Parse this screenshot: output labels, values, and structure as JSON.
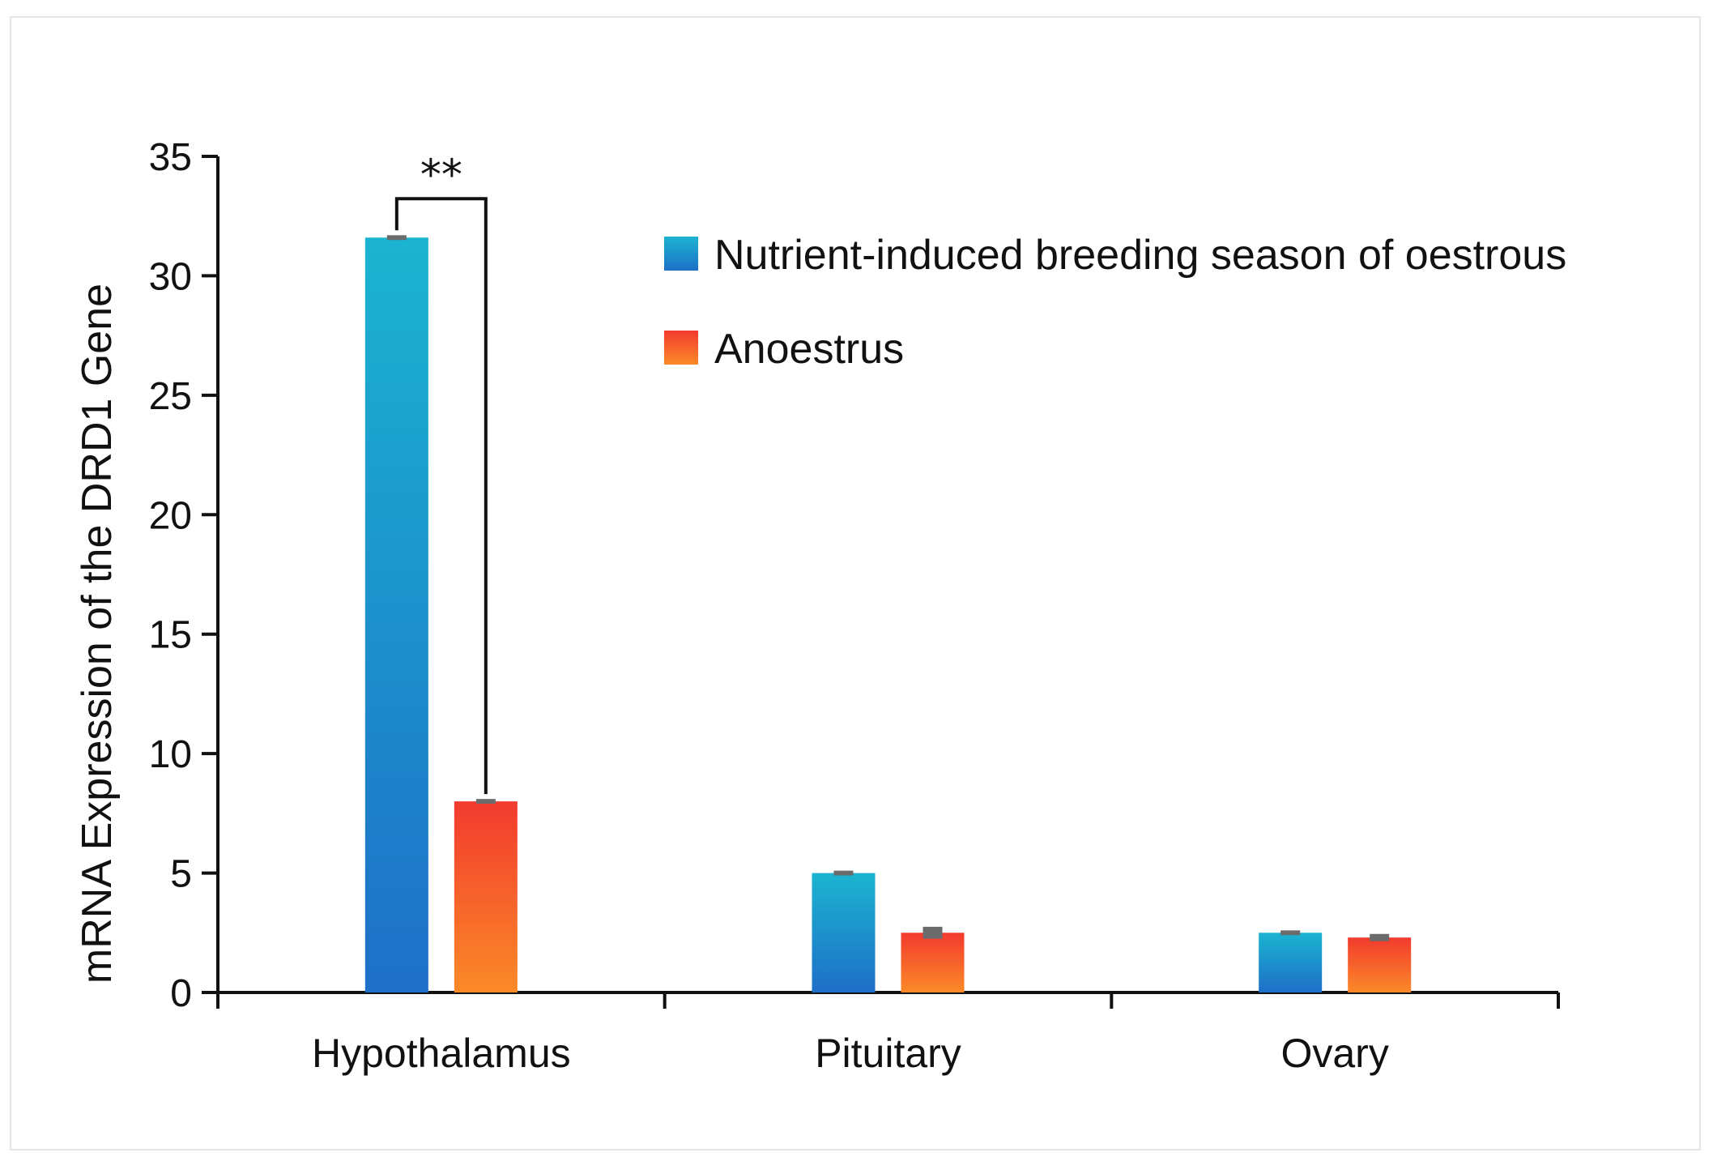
{
  "chart_data": {
    "type": "bar",
    "title": "",
    "xlabel": "",
    "ylabel": "mRNA Expression of the DRD1 Gene",
    "ylim": [
      0,
      35
    ],
    "yticks": [
      0,
      5,
      10,
      15,
      20,
      25,
      30,
      35
    ],
    "categories": [
      "Hypothalamus",
      "Pituitary",
      "Ovary"
    ],
    "series": [
      {
        "name": "Nutrient-induced breeding season of oestrous",
        "values": [
          31.6,
          5.0,
          2.5
        ],
        "errors": [
          0.1,
          0.1,
          0.1
        ],
        "color_top": "#1bb4d0",
        "color_bottom": "#1e6fc8"
      },
      {
        "name": "Anoestrus",
        "values": [
          8.0,
          2.5,
          2.3
        ],
        "errors": [
          0.1,
          0.25,
          0.15
        ],
        "color_top": "#f23a2e",
        "color_bottom": "#fb8a28"
      }
    ],
    "annotations": [
      {
        "text": "**",
        "category": "Hypothalamus",
        "between": [
          "Nutrient-induced breeding season of oestrous",
          "Anoestrus"
        ]
      }
    ],
    "legend": "top-right",
    "grid": false
  }
}
